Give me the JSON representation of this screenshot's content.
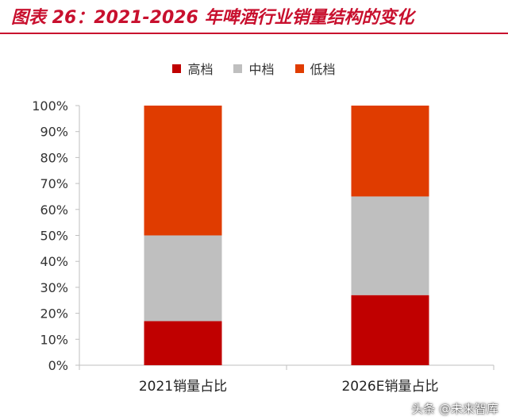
{
  "title": "图表 26：2021-2026 年啤酒行业销量结构的变化",
  "colors": {
    "title": "#c8102e",
    "rule": "#c8102e",
    "axis": "#bfbfbf"
  },
  "watermark": "头条 @未来智库",
  "chart_data": {
    "type": "bar",
    "stacked": true,
    "categories": [
      "2021销量占比",
      "2026E销量占比"
    ],
    "series": [
      {
        "name": "高档",
        "color": "#c00000",
        "values": [
          17,
          27
        ]
      },
      {
        "name": "中档",
        "color": "#bfbfbf",
        "values": [
          33,
          38
        ]
      },
      {
        "name": "低档",
        "color": "#e03c00",
        "values": [
          50,
          35
        ]
      }
    ],
    "ylim": [
      0,
      100
    ],
    "yticks": [
      "0%",
      "10%",
      "20%",
      "30%",
      "40%",
      "50%",
      "60%",
      "70%",
      "80%",
      "90%",
      "100%"
    ],
    "xlabel": "",
    "ylabel": "",
    "legend": "top-center",
    "grid": false
  }
}
